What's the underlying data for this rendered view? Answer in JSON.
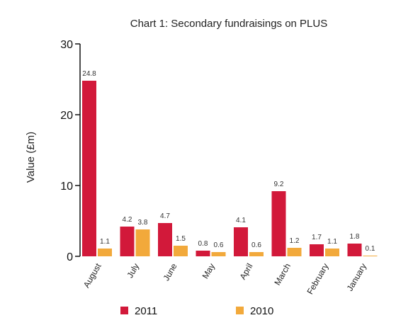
{
  "chart_data": {
    "type": "bar",
    "title": "Chart 1: Secondary fundraisings on PLUS",
    "xlabel": "",
    "ylabel": "Value (£m)",
    "ylim": [
      0,
      30
    ],
    "yticks": [
      0,
      10,
      20,
      30
    ],
    "grid": false,
    "legend": "bottom",
    "categories": [
      "August",
      "July",
      "June",
      "May",
      "April",
      "March",
      "February",
      "January"
    ],
    "series": [
      {
        "name": "2011",
        "color": "#d2193a",
        "values": [
          24.8,
          4.2,
          4.7,
          0.8,
          4.1,
          9.2,
          1.7,
          1.8
        ],
        "labels": [
          "24.8",
          "4.2",
          "4.7",
          "0.8",
          "4.1",
          "9.2",
          "1.7",
          "1.8"
        ]
      },
      {
        "name": "2010",
        "color": "#f2a93b",
        "values": [
          1.1,
          3.8,
          1.5,
          0.6,
          0.6,
          1.2,
          1.1,
          0.1
        ],
        "labels": [
          "1.1",
          "3.8",
          "1.5",
          "0.6",
          "0.6",
          "1.2",
          "1.1",
          "0.1"
        ]
      }
    ]
  }
}
